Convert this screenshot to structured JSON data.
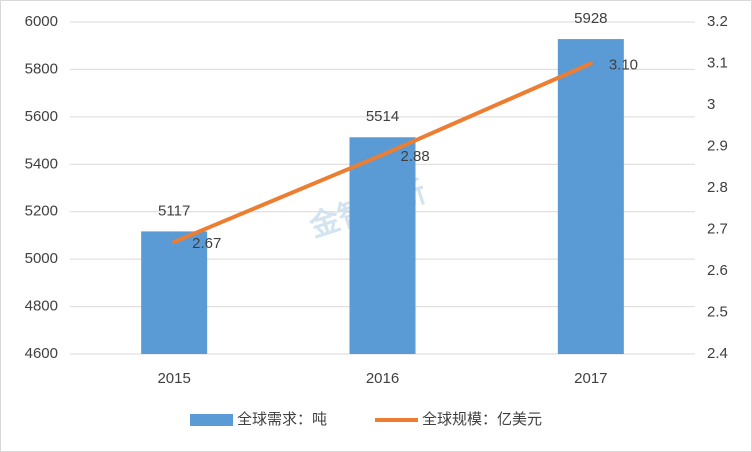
{
  "chart_data": {
    "type": "bar_line",
    "categories": [
      "2015",
      "2016",
      "2017"
    ],
    "series": [
      {
        "name": "全球需求：吨",
        "color": "#5b9bd5",
        "type": "bar",
        "values": [
          5117,
          5514,
          5928
        ]
      },
      {
        "name": "全球规模：亿美元",
        "color": "#ed7d31",
        "type": "line",
        "axis": "y2",
        "values": [
          2.67,
          2.88,
          3.1
        ],
        "value_labels": [
          "2.67",
          "2.88",
          "3.10"
        ]
      }
    ],
    "ylim": [
      4600,
      6000
    ],
    "yticks": [
      4600,
      4800,
      5000,
      5200,
      5400,
      5600,
      5800,
      6000
    ],
    "y2lim": [
      2.4,
      3.2
    ],
    "y2ticks": [
      2.4,
      2.5,
      2.6,
      2.7,
      2.8,
      2.9,
      3,
      3.1,
      3.2
    ],
    "grid": true,
    "legend": "bottom",
    "watermark": "金智创新"
  }
}
